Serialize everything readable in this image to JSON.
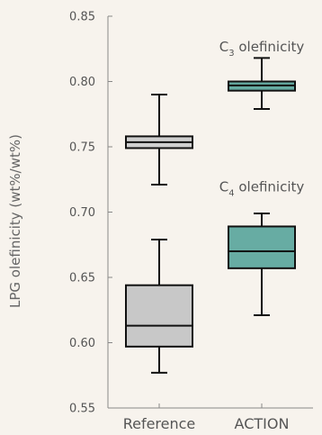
{
  "chart_data": {
    "type": "box",
    "ylabel": "LPG olefinicity (wt%/wt%)",
    "ylim": [
      0.55,
      0.85
    ],
    "yticks": [
      "0.55",
      "0.60",
      "0.65",
      "0.70",
      "0.75",
      "0.80",
      "0.85"
    ],
    "categories": [
      "Reference",
      "ACTION"
    ],
    "grid": false,
    "series": [
      {
        "name": "C3 olefinicity",
        "boxes": [
          {
            "category": "Reference",
            "min": 0.721,
            "q1": 0.749,
            "median": 0.7535,
            "q3": 0.758,
            "max": 0.79,
            "color": "#cfcfcf"
          },
          {
            "category": "ACTION",
            "min": 0.779,
            "q1": 0.793,
            "median": 0.797,
            "q3": 0.8,
            "max": 0.818,
            "color": "#67aca3"
          }
        ]
      },
      {
        "name": "C4 olefinicity",
        "boxes": [
          {
            "category": "Reference",
            "min": 0.577,
            "q1": 0.597,
            "median": 0.613,
            "q3": 0.644,
            "max": 0.679,
            "color": "#c8c8c8"
          },
          {
            "category": "ACTION",
            "min": 0.621,
            "q1": 0.657,
            "median": 0.67,
            "q3": 0.689,
            "max": 0.699,
            "color": "#67aca3"
          }
        ]
      }
    ],
    "annotations": [
      {
        "main": "C",
        "sub": "3",
        "rest": " olefinicity",
        "x": 1.5,
        "y": 0.823
      },
      {
        "main": "C",
        "sub": "4",
        "rest": " olefinicity",
        "x": 1.5,
        "y": 0.716
      }
    ]
  },
  "colors": {
    "background": "#f7f3ed",
    "axis": "#888888",
    "text": "#555555",
    "box_stroke": "#111111"
  }
}
